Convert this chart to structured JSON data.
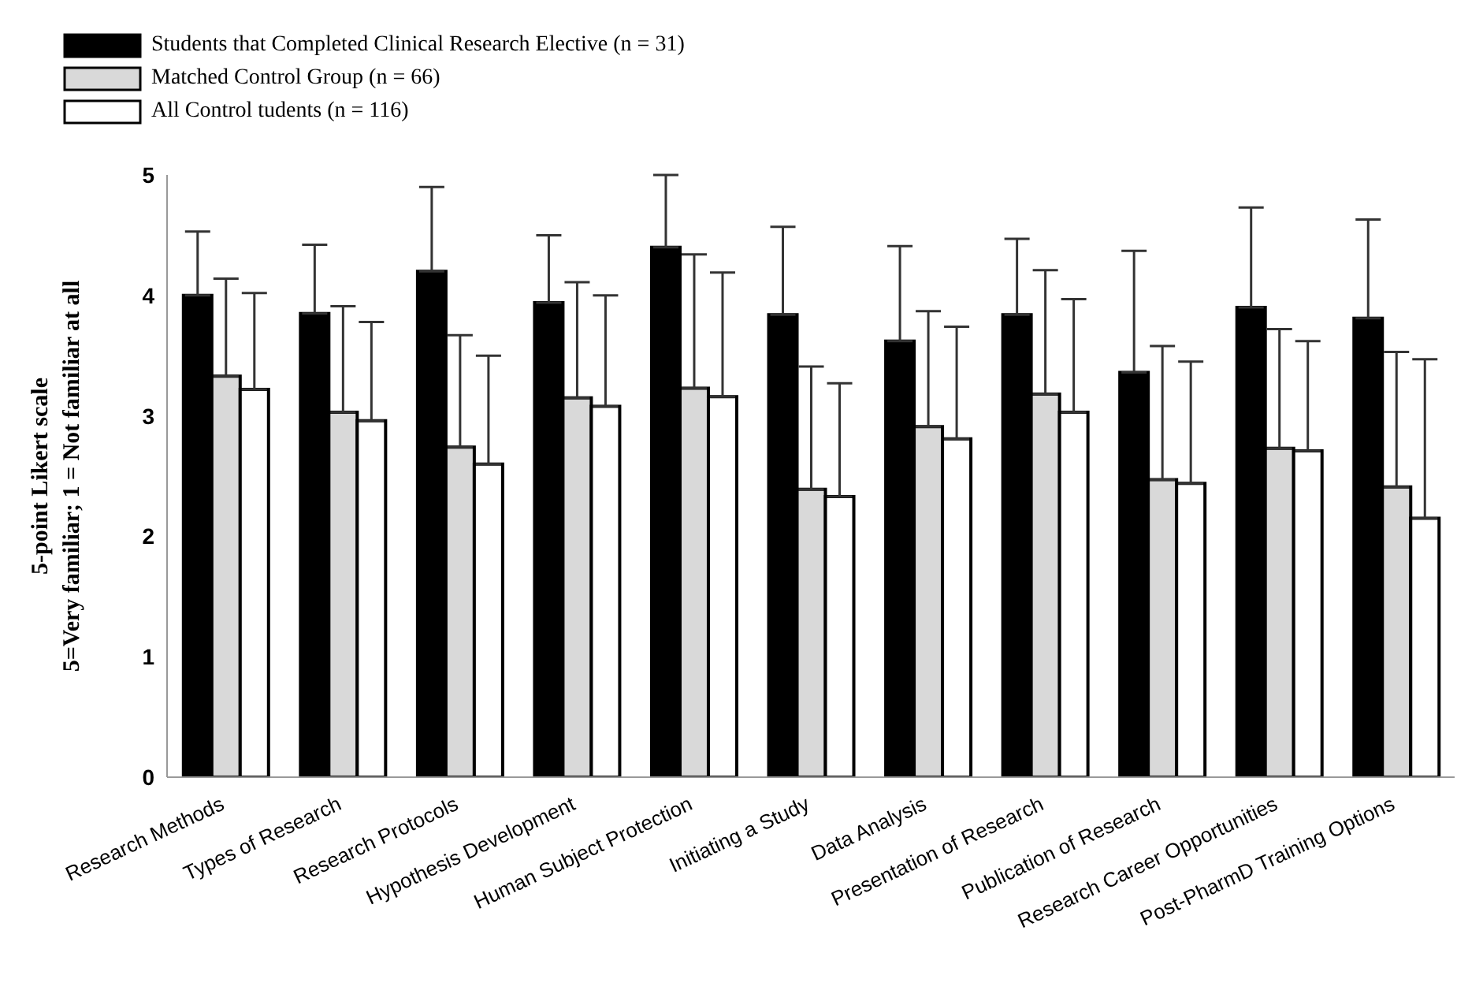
{
  "chart_data": {
    "type": "bar",
    "ylabel": "5-point Likert scale\n5=Very familiar; 1 = Not familiar at all",
    "categories": [
      "Research Methods",
      "Types of Research",
      "Research Protocols",
      "Hypothesis Development",
      "Human Subject Protection",
      "Initiating a Study",
      "Data Analysis",
      "Presentation of Research",
      "Publication of Research",
      "Research Career Opportunities",
      "Post-PharmD Training Options"
    ],
    "series": [
      {
        "name": "Students that Completed Clinical Research Elective (n = 31)",
        "color": "#000000",
        "values": [
          4.0,
          3.85,
          4.2,
          3.94,
          4.4,
          3.84,
          3.62,
          3.84,
          3.36,
          3.9,
          3.81
        ],
        "errors": [
          [
            4.0,
            4.53
          ],
          [
            3.85,
            4.42
          ],
          [
            4.2,
            4.9
          ],
          [
            3.94,
            4.5
          ],
          [
            4.4,
            5.0
          ],
          [
            3.84,
            4.57
          ],
          [
            3.62,
            4.41
          ],
          [
            3.84,
            4.47
          ],
          [
            3.36,
            4.37
          ],
          [
            3.9,
            4.73
          ],
          [
            3.81,
            4.63
          ]
        ]
      },
      {
        "name": "Matched Control Group (n = 66)",
        "color": "#d9d9d9",
        "values": [
          3.33,
          3.03,
          2.74,
          3.15,
          3.23,
          2.39,
          2.91,
          3.18,
          2.47,
          2.73,
          2.41
        ],
        "errors": [
          [
            3.33,
            4.14
          ],
          [
            3.03,
            3.91
          ],
          [
            2.74,
            3.67
          ],
          [
            3.15,
            4.11
          ],
          [
            3.23,
            4.34
          ],
          [
            2.39,
            3.41
          ],
          [
            2.91,
            3.87
          ],
          [
            3.18,
            4.21
          ],
          [
            2.47,
            3.58
          ],
          [
            2.73,
            3.72
          ],
          [
            2.41,
            3.53
          ]
        ]
      },
      {
        "name": "All Control tudents (n = 116)",
        "color": "#ffffff",
        "values": [
          3.22,
          2.96,
          2.6,
          3.08,
          3.16,
          2.33,
          2.81,
          3.03,
          2.44,
          2.71,
          2.15
        ],
        "errors": [
          [
            3.22,
            4.02
          ],
          [
            2.96,
            3.78
          ],
          [
            2.6,
            3.5
          ],
          [
            3.08,
            4.0
          ],
          [
            3.16,
            4.19
          ],
          [
            2.33,
            3.27
          ],
          [
            2.81,
            3.74
          ],
          [
            3.03,
            3.97
          ],
          [
            2.44,
            3.45
          ],
          [
            2.71,
            3.62
          ],
          [
            2.15,
            3.47
          ]
        ]
      }
    ],
    "ylim": [
      0,
      5
    ],
    "yticks": [
      0,
      1,
      2,
      3,
      4,
      5
    ],
    "grid": false,
    "legend": "top left"
  }
}
